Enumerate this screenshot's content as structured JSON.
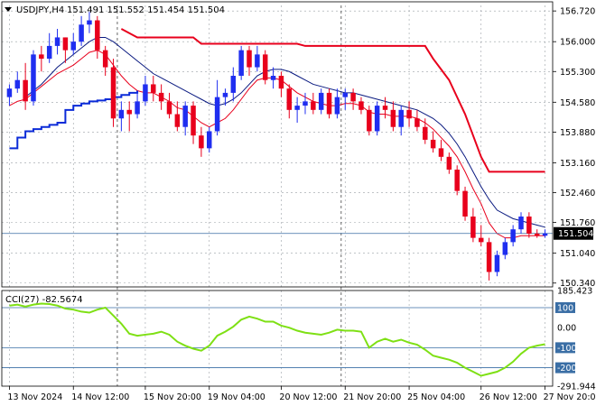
{
  "header": {
    "symbol": "USDJPY,H4",
    "ohlc": "151.491 151.552 151.454 151.504",
    "arrow_icon": "triangle-down-icon"
  },
  "indicator": {
    "label": "CCI(27) -82.5674"
  },
  "colors": {
    "bull": "#1f2ef0",
    "bear": "#e8001c",
    "ma_fast": "#e8001c",
    "ma_slow": "#0a1a80",
    "support": "#0b2bd8",
    "resistance": "#e8001c",
    "cci": "#7ee014",
    "price_line": "#3a6ea5",
    "grid": "#9aa0a6"
  },
  "chart_data": [
    {
      "type": "candlestick",
      "title": "USDJPY,H4",
      "ylim": [
        150.25,
        156.85
      ],
      "y_ticks": [
        "156.720",
        "156.000",
        "155.300",
        "154.580",
        "153.880",
        "153.160",
        "152.460",
        "151.760",
        "151.040",
        "150.340"
      ],
      "current_price": "151.504",
      "x_labels": [
        "13 Nov 2024",
        "14 Nov 12:00",
        "15 Nov 20:00",
        "19 Nov 04:00",
        "20 Nov 12:00",
        "21 Nov 20:00",
        "25 Nov 04:00",
        "26 Nov 12:00",
        "27 Nov 20:00"
      ],
      "series": [
        {
          "name": "candles",
          "ohlc": [
            [
              154.7,
              155.0,
              154.5,
              154.9
            ],
            [
              154.9,
              155.3,
              154.8,
              155.1
            ],
            [
              155.1,
              155.5,
              154.4,
              154.6
            ],
            [
              154.6,
              155.8,
              154.5,
              155.7
            ],
            [
              155.7,
              155.9,
              155.3,
              155.6
            ],
            [
              155.6,
              156.2,
              155.5,
              155.9
            ],
            [
              155.9,
              156.3,
              155.7,
              156.1
            ],
            [
              156.1,
              156.1,
              155.5,
              155.8
            ],
            [
              155.8,
              156.2,
              155.7,
              156.0
            ],
            [
              156.0,
              156.6,
              155.9,
              156.4
            ],
            [
              156.4,
              156.7,
              156.2,
              156.5
            ],
            [
              156.5,
              156.6,
              155.6,
              155.8
            ],
            [
              155.8,
              155.9,
              155.2,
              155.4
            ],
            [
              155.4,
              155.6,
              154.0,
              154.2
            ],
            [
              154.2,
              154.6,
              153.9,
              154.4
            ],
            [
              154.4,
              154.6,
              153.9,
              154.3
            ],
            [
              154.3,
              154.8,
              154.2,
              154.6
            ],
            [
              154.6,
              155.2,
              154.5,
              155.0
            ],
            [
              155.0,
              155.2,
              154.6,
              154.8
            ],
            [
              154.8,
              155.0,
              154.4,
              154.6
            ],
            [
              154.6,
              154.8,
              154.2,
              154.3
            ],
            [
              154.3,
              154.6,
              153.9,
              154.0
            ],
            [
              154.0,
              154.6,
              153.8,
              154.5
            ],
            [
              154.5,
              154.6,
              153.6,
              153.8
            ],
            [
              153.8,
              154.0,
              153.3,
              153.5
            ],
            [
              153.5,
              154.0,
              153.4,
              153.9
            ],
            [
              153.9,
              155.1,
              153.8,
              154.7
            ],
            [
              154.7,
              154.9,
              154.5,
              154.8
            ],
            [
              154.8,
              155.4,
              154.6,
              155.2
            ],
            [
              155.2,
              155.9,
              155.1,
              155.8
            ],
            [
              155.8,
              155.9,
              155.2,
              155.4
            ],
            [
              155.4,
              155.9,
              155.3,
              155.7
            ],
            [
              155.7,
              155.8,
              155.0,
              155.1
            ],
            [
              155.1,
              155.4,
              154.9,
              155.2
            ],
            [
              155.2,
              155.3,
              154.7,
              154.9
            ],
            [
              154.9,
              155.0,
              154.2,
              154.4
            ],
            [
              154.4,
              154.7,
              154.1,
              154.5
            ],
            [
              154.5,
              154.8,
              154.3,
              154.6
            ],
            [
              154.6,
              154.8,
              154.3,
              154.4
            ],
            [
              154.4,
              154.9,
              154.3,
              154.8
            ],
            [
              154.8,
              154.9,
              154.2,
              154.3
            ],
            [
              154.3,
              154.9,
              154.2,
              154.7
            ],
            [
              154.7,
              154.9,
              154.4,
              154.8
            ],
            [
              154.8,
              154.9,
              154.4,
              154.6
            ],
            [
              154.6,
              154.7,
              154.3,
              154.4
            ],
            [
              154.4,
              154.5,
              153.8,
              153.9
            ],
            [
              153.9,
              154.6,
              153.8,
              154.5
            ],
            [
              154.5,
              154.7,
              154.2,
              154.4
            ],
            [
              154.4,
              154.6,
              153.9,
              154.0
            ],
            [
              154.0,
              154.5,
              153.8,
              154.4
            ],
            [
              154.4,
              154.6,
              154.0,
              154.2
            ],
            [
              154.2,
              154.4,
              153.9,
              154.0
            ],
            [
              154.0,
              154.2,
              153.6,
              153.7
            ],
            [
              153.7,
              153.9,
              153.4,
              153.5
            ],
            [
              153.5,
              153.7,
              153.2,
              153.3
            ],
            [
              153.3,
              153.4,
              152.9,
              153.0
            ],
            [
              153.0,
              153.1,
              152.4,
              152.5
            ],
            [
              152.5,
              152.6,
              151.8,
              151.9
            ],
            [
              151.9,
              152.1,
              151.3,
              151.4
            ],
            [
              151.4,
              151.7,
              151.2,
              151.3
            ],
            [
              151.3,
              151.4,
              150.4,
              150.6
            ],
            [
              150.6,
              151.1,
              150.5,
              151.0
            ],
            [
              151.0,
              151.4,
              150.9,
              151.3
            ],
            [
              151.3,
              151.7,
              151.2,
              151.6
            ],
            [
              151.6,
              152.0,
              151.5,
              151.9
            ],
            [
              151.9,
              152.0,
              151.4,
              151.5
            ],
            [
              151.5,
              151.6,
              151.4,
              151.45
            ],
            [
              151.45,
              151.6,
              151.4,
              151.504
            ]
          ]
        },
        {
          "name": "fast MA",
          "values": [
            154.5,
            154.6,
            154.65,
            154.8,
            154.95,
            155.1,
            155.25,
            155.35,
            155.45,
            155.6,
            155.75,
            155.8,
            155.7,
            155.45,
            155.2,
            155.0,
            154.85,
            154.8,
            154.8,
            154.7,
            154.6,
            154.45,
            154.4,
            154.25,
            154.1,
            154.0,
            154.1,
            154.2,
            154.4,
            154.65,
            154.9,
            155.1,
            155.15,
            155.15,
            155.1,
            154.95,
            154.8,
            154.7,
            154.6,
            154.55,
            154.5,
            154.5,
            154.55,
            154.55,
            154.5,
            154.35,
            154.3,
            154.3,
            154.25,
            154.25,
            154.25,
            154.2,
            154.1,
            153.95,
            153.75,
            153.55,
            153.3,
            152.95,
            152.55,
            152.2,
            151.75,
            151.5,
            151.4,
            151.4,
            151.45,
            151.45,
            151.45,
            151.45
          ]
        },
        {
          "name": "slow MA",
          "values": [
            null,
            null,
            154.7,
            154.85,
            155.0,
            155.2,
            155.4,
            155.55,
            155.7,
            155.85,
            156.0,
            156.1,
            156.1,
            156.0,
            155.85,
            155.7,
            155.55,
            155.4,
            155.25,
            155.15,
            155.05,
            154.95,
            154.85,
            154.75,
            154.65,
            154.55,
            154.5,
            154.55,
            154.65,
            154.8,
            155.0,
            155.2,
            155.3,
            155.35,
            155.35,
            155.3,
            155.2,
            155.1,
            155.0,
            154.95,
            154.9,
            154.85,
            154.8,
            154.8,
            154.75,
            154.7,
            154.65,
            154.6,
            154.55,
            154.5,
            154.45,
            154.4,
            154.3,
            154.2,
            154.05,
            153.85,
            153.6,
            153.3,
            152.95,
            152.6,
            152.3,
            152.05,
            151.95,
            151.85,
            151.8,
            151.75,
            151.7,
            151.65
          ]
        },
        {
          "name": "support",
          "values": [
            153.5,
            153.75,
            153.9,
            153.95,
            154.0,
            154.05,
            154.1,
            154.4,
            154.5,
            154.55,
            154.6,
            154.62,
            154.65,
            154.7,
            154.75,
            154.8,
            154.85,
            null,
            null,
            null,
            null,
            null,
            null,
            null,
            null,
            null,
            null,
            null,
            null,
            null,
            null,
            null,
            null,
            null,
            null,
            null,
            null,
            null,
            null,
            null,
            null,
            null,
            null,
            null,
            null,
            null,
            null,
            null,
            null,
            null,
            null,
            null,
            null,
            null,
            null,
            null,
            null,
            null,
            null,
            null,
            null,
            null,
            null,
            null,
            null,
            null,
            null,
            null
          ]
        },
        {
          "name": "resistance",
          "values": [
            null,
            null,
            null,
            null,
            null,
            null,
            null,
            null,
            null,
            null,
            null,
            null,
            null,
            null,
            156.3,
            156.2,
            156.1,
            156.1,
            156.1,
            156.1,
            156.1,
            156.1,
            156.1,
            156.1,
            155.95,
            155.95,
            155.95,
            155.95,
            155.95,
            155.95,
            155.95,
            155.95,
            155.95,
            155.95,
            155.95,
            155.95,
            155.95,
            155.9,
            155.9,
            155.9,
            155.9,
            155.9,
            155.9,
            155.9,
            155.9,
            155.9,
            155.9,
            155.9,
            155.9,
            155.9,
            155.9,
            155.9,
            155.9,
            155.6,
            155.35,
            155.1,
            154.7,
            154.3,
            153.8,
            153.3,
            152.95,
            152.95,
            152.95,
            152.95,
            152.95,
            152.95,
            152.95,
            152.95
          ]
        }
      ]
    },
    {
      "type": "line",
      "title": "CCI(27) -82.5674",
      "ylim": [
        -291.9447,
        185.423
      ],
      "y_ticks": [
        "185.423",
        "100",
        "0.00",
        "-100",
        "-200",
        "-291.9447"
      ],
      "levels": [
        100,
        -100,
        -200
      ],
      "series": [
        {
          "name": "CCI(27)",
          "values": [
            110,
            115,
            105,
            115,
            120,
            118,
            110,
            95,
            90,
            80,
            75,
            90,
            100,
            60,
            20,
            -30,
            -40,
            -35,
            -30,
            -20,
            -35,
            -70,
            -90,
            -105,
            -115,
            -90,
            -40,
            -20,
            5,
            40,
            55,
            45,
            30,
            30,
            10,
            0,
            -15,
            -25,
            -30,
            -35,
            -25,
            -10,
            -15,
            -15,
            -20,
            -100,
            -70,
            -55,
            -70,
            -60,
            -75,
            -85,
            -110,
            -140,
            -150,
            -160,
            -175,
            -200,
            -220,
            -240,
            -230,
            -220,
            -200,
            -170,
            -130,
            -100,
            -90,
            -82.5674
          ]
        }
      ]
    }
  ]
}
